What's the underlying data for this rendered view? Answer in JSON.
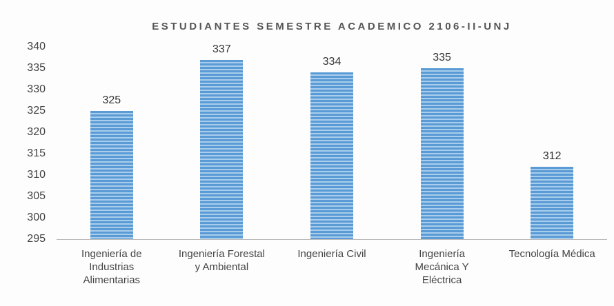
{
  "chart_data": {
    "type": "bar",
    "title": "ESTUDIANTES SEMESTRE ACADEMICO 2106-II-UNJ",
    "categories": [
      "Ingeniería de Industrias Alimentarias",
      "Ingeniería Forestal y Ambiental",
      "Ingeniería Civil",
      "Ingeniería Mecánica Y Eléctrica",
      "Tecnología Médica"
    ],
    "values": [
      325,
      337,
      334,
      335,
      312
    ],
    "color": "#5b9bd5",
    "ylim": [
      295,
      340
    ],
    "yticks": [
      295,
      300,
      305,
      310,
      315,
      320,
      325,
      330,
      335,
      340
    ],
    "grid": false
  }
}
